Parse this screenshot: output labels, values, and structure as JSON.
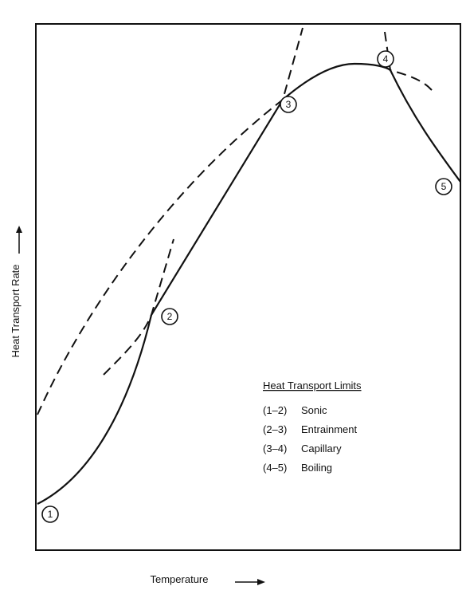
{
  "axes": {
    "x_label": "Temperature",
    "y_label": "Heat Transport Rate"
  },
  "points": [
    "1",
    "2",
    "3",
    "4",
    "5"
  ],
  "legend": {
    "title": "Heat Transport Limits",
    "items": [
      {
        "range": "(1–2)",
        "name": "Sonic"
      },
      {
        "range": "(2–3)",
        "name": "Entrainment"
      },
      {
        "range": "(3–4)",
        "name": "Capillary"
      },
      {
        "range": "(4–5)",
        "name": "Boiling"
      }
    ]
  }
}
